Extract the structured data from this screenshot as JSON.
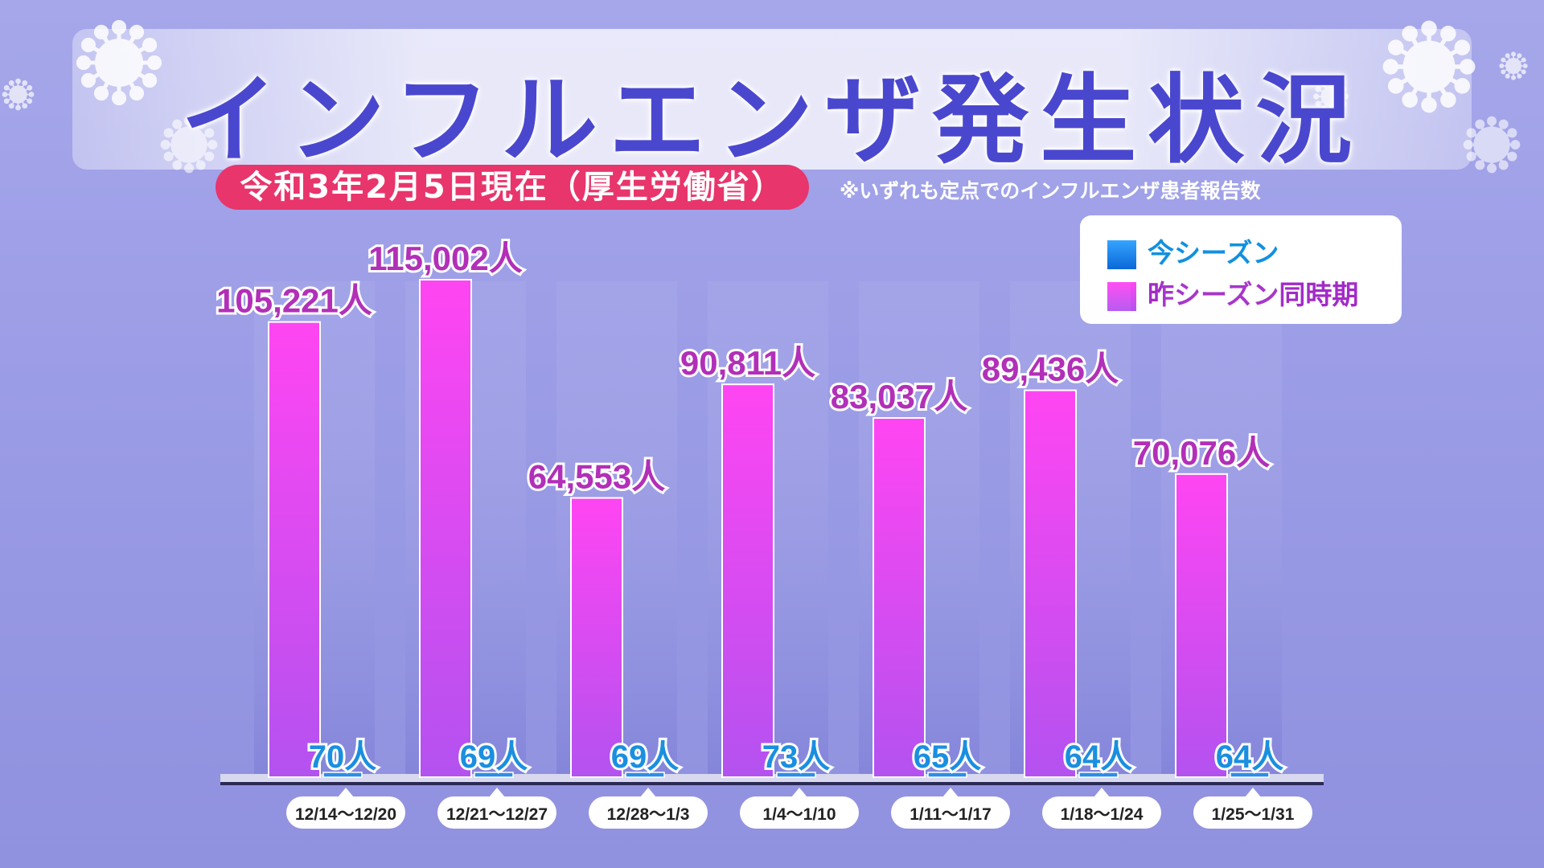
{
  "header": {
    "title": "インフルエンザ発生状況",
    "date_label": "令和3年2月5日現在（厚生労働省）",
    "note": "※いずれも定点でのインフルエンザ患者報告数"
  },
  "legend": {
    "current": "今シーズン",
    "previous": "昨シーズン同時期"
  },
  "colors": {
    "previous_top": "#ff45f2",
    "previous_bottom": "#b352f0",
    "current_bar": "#2b8fe6",
    "previous_label": "#b22fb8",
    "current_label": "#1a8fe0",
    "title": "#4a47cf",
    "pill": "#e8356c"
  },
  "chart_data": {
    "type": "bar",
    "unit": "人",
    "categories": [
      "12/14～12/20",
      "12/21～12/27",
      "12/28～1/3",
      "1/4～1/10",
      "1/11～1/17",
      "1/18～1/24",
      "1/25～1/31"
    ],
    "series": [
      {
        "name": "昨シーズン同時期",
        "values": [
          105221,
          115002,
          64553,
          90811,
          83037,
          89436,
          70076
        ]
      },
      {
        "name": "今シーズン",
        "values": [
          70,
          69,
          69,
          73,
          65,
          64,
          64
        ]
      }
    ],
    "previous_labels": [
      "105,221",
      "115,002",
      "64,553",
      "90,811",
      "83,037",
      "89,436",
      "70,076"
    ],
    "current_labels": [
      "70",
      "69",
      "69",
      "73",
      "65",
      "64",
      "64"
    ],
    "ylim": [
      0,
      115002
    ],
    "grid": false,
    "legend_position": "top-right"
  }
}
